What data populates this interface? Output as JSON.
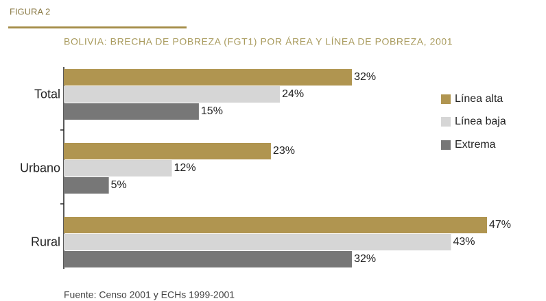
{
  "chart_data": {
    "type": "bar",
    "figure_label": "FIGURA 2",
    "title": "BOLIVIA: BRECHA DE POBREZA (FGT1) POR ÁREA Y LÍNEA DE POBREZA, 2001",
    "categories": [
      "Total",
      "Urbano",
      "Rural"
    ],
    "series": [
      {
        "name": "Línea alta",
        "color": "#b09550",
        "values": [
          32,
          23,
          47
        ],
        "value_labels": [
          "32%",
          "23%",
          "47%"
        ]
      },
      {
        "name": "Línea baja",
        "color": "#d6d6d6",
        "values": [
          24,
          12,
          43
        ],
        "value_labels": [
          "24%",
          "12%",
          "43%"
        ]
      },
      {
        "name": "Extrema",
        "color": "#777777",
        "values": [
          15,
          5,
          32
        ],
        "value_labels": [
          "15%",
          "5%",
          "32%"
        ]
      }
    ],
    "legend": "right",
    "source": "Fuente: Censo 2001 y ECHs 1999-2001"
  }
}
